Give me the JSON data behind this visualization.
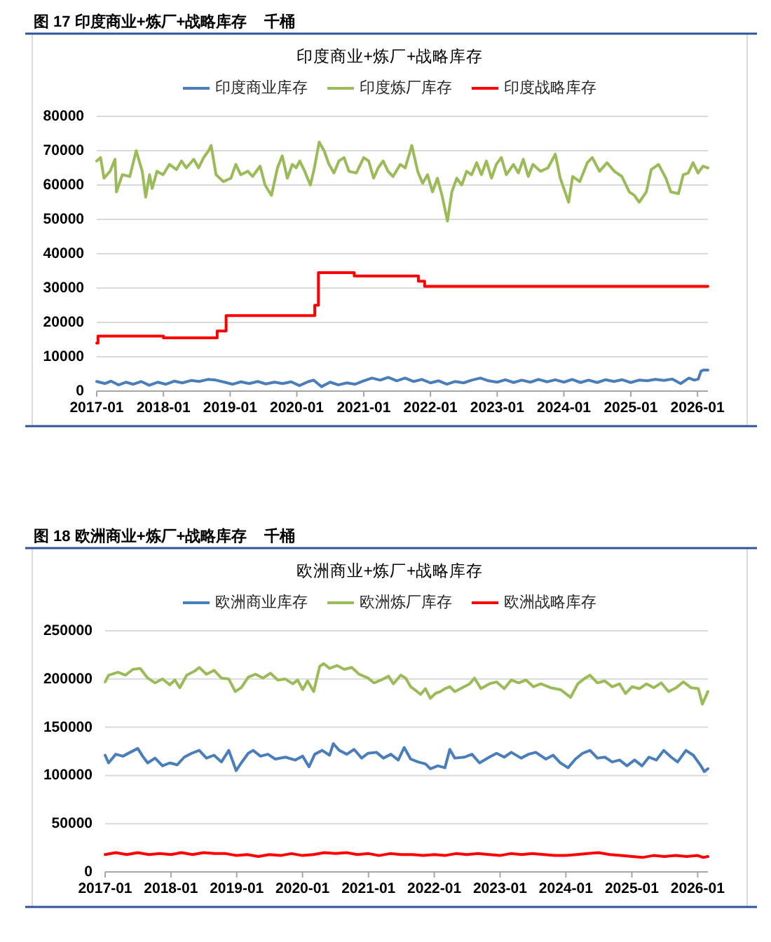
{
  "chart_data": [
    {
      "type": "line",
      "title": "图 17 印度商业+炼厂+战略库存    千桶",
      "subtitle": "印度商业+炼厂+战略库存",
      "legend": "top",
      "grid": "y",
      "xlim": [
        "2017-01-01",
        "2026-02-27"
      ],
      "xticks": [
        "2017-01",
        "2018-01",
        "2019-01",
        "2020-01",
        "2021-01",
        "2022-01",
        "2023-01",
        "2024-01",
        "2025-01",
        "2026-01"
      ],
      "ylim": [
        0,
        80000
      ],
      "yticks": [
        0,
        10000,
        20000,
        30000,
        40000,
        50000,
        60000,
        70000,
        80000
      ],
      "series": [
        {
          "name": "印度商业库存",
          "color": "#4a7ebb",
          "x": [
            "2017-01-01",
            "2017-02-15",
            "2017-03-20",
            "2017-05-01",
            "2017-06-10",
            "2017-07-20",
            "2017-09-01",
            "2017-10-15",
            "2017-12-01",
            "2018-01-15",
            "2018-03-01",
            "2018-04-15",
            "2018-06-01",
            "2018-07-15",
            "2018-09-01",
            "2018-10-15",
            "2018-12-01",
            "2019-01-15",
            "2019-03-01",
            "2019-04-15",
            "2019-06-01",
            "2019-07-15",
            "2019-09-01",
            "2019-10-15",
            "2019-12-01",
            "2020-01-15",
            "2020-03-01",
            "2020-04-01",
            "2020-05-15",
            "2020-07-01",
            "2020-08-15",
            "2020-10-01",
            "2020-11-15",
            "2021-01-01",
            "2021-02-15",
            "2021-04-01",
            "2021-05-15",
            "2021-07-01",
            "2021-08-15",
            "2021-10-01",
            "2021-11-15",
            "2022-01-01",
            "2022-02-15",
            "2022-04-01",
            "2022-05-15",
            "2022-07-01",
            "2022-08-15",
            "2022-10-01",
            "2022-11-15",
            "2023-01-01",
            "2023-02-15",
            "2023-04-01",
            "2023-05-15",
            "2023-07-01",
            "2023-08-15",
            "2023-10-01",
            "2023-11-15",
            "2024-01-01",
            "2024-02-15",
            "2024-04-01",
            "2024-05-15",
            "2024-07-01",
            "2024-08-15",
            "2024-10-01",
            "2024-11-15",
            "2025-01-01",
            "2025-02-15",
            "2025-04-01",
            "2025-05-15",
            "2025-07-01",
            "2025-08-15",
            "2025-10-01",
            "2025-11-15",
            "2025-12-15",
            "2026-01-05",
            "2026-01-20",
            "2026-02-01",
            "2026-02-27"
          ],
          "values": [
            2800,
            2200,
            2900,
            1800,
            2600,
            2000,
            2800,
            1700,
            2600,
            2000,
            2900,
            2400,
            3100,
            2800,
            3400,
            3200,
            2600,
            2000,
            2700,
            2200,
            2800,
            2100,
            2600,
            2200,
            2700,
            1600,
            2700,
            3200,
            1300,
            2600,
            1800,
            2400,
            2000,
            3000,
            3800,
            3200,
            4000,
            3000,
            3800,
            2800,
            3400,
            2400,
            3000,
            2000,
            2800,
            2400,
            3200,
            3800,
            3000,
            2600,
            3300,
            2500,
            3200,
            2600,
            3400,
            2700,
            3300,
            2600,
            3400,
            2500,
            3200,
            2500,
            3300,
            2800,
            3300,
            2500,
            3200,
            3000,
            3400,
            3100,
            3500,
            2200,
            3800,
            3200,
            3500,
            5800,
            6100,
            6100
          ]
        },
        {
          "name": "印度炼厂库存",
          "color": "#9bbb59",
          "x": [
            "2017-01-01",
            "2017-01-22",
            "2017-02-10",
            "2017-03-15",
            "2017-04-11",
            "2017-04-19",
            "2017-05-21",
            "2017-07-01",
            "2017-08-05",
            "2017-09-07",
            "2017-09-26",
            "2017-10-17",
            "2017-10-31",
            "2017-11-27",
            "2017-12-30",
            "2018-02-03",
            "2018-03-13",
            "2018-04-10",
            "2018-05-06",
            "2018-06-16",
            "2018-07-12",
            "2018-08-09",
            "2018-09-05",
            "2018-09-19",
            "2018-10-16",
            "2018-11-25",
            "2019-01-05",
            "2019-02-01",
            "2019-02-28",
            "2019-04-08",
            "2019-05-04",
            "2019-06-14",
            "2019-07-11",
            "2019-08-15",
            "2019-09-17",
            "2019-10-13",
            "2019-11-10",
            "2019-12-07",
            "2019-12-28",
            "2020-01-17",
            "2020-02-13",
            "2020-03-15",
            "2020-04-06",
            "2020-05-02",
            "2020-05-29",
            "2020-06-25",
            "2020-07-22",
            "2020-08-18",
            "2020-09-15",
            "2020-10-12",
            "2020-11-21",
            "2021-01-01",
            "2021-01-28",
            "2021-02-24",
            "2021-03-21",
            "2021-04-17",
            "2021-05-14",
            "2021-06-10",
            "2021-07-20",
            "2021-08-16",
            "2021-09-21",
            "2021-10-23",
            "2021-11-19",
            "2021-12-16",
            "2022-01-12",
            "2022-02-08",
            "2022-03-05",
            "2022-04-04",
            "2022-04-28",
            "2022-05-25",
            "2022-06-21",
            "2022-07-18",
            "2022-08-14",
            "2022-09-11",
            "2022-10-07",
            "2022-11-03",
            "2022-12-01",
            "2022-12-27",
            "2023-01-24",
            "2023-02-20",
            "2023-03-31",
            "2023-04-27",
            "2023-05-24",
            "2023-06-20",
            "2023-07-16",
            "2023-08-26",
            "2023-10-06",
            "2023-11-15",
            "2023-12-12",
            "2024-01-27",
            "2024-02-18",
            "2024-03-28",
            "2024-05-08",
            "2024-06-04",
            "2024-07-14",
            "2024-08-24",
            "2024-10-03",
            "2024-11-13",
            "2024-12-24",
            "2025-01-20",
            "2025-02-16",
            "2025-03-27",
            "2025-04-23",
            "2025-06-02",
            "2025-07-12",
            "2025-08-08",
            "2025-09-19",
            "2025-10-15",
            "2025-11-11",
            "2025-12-08",
            "2026-01-04",
            "2026-01-31",
            "2026-02-27"
          ],
          "values": [
            67000,
            68000,
            62000,
            64000,
            67500,
            58000,
            63000,
            62500,
            70000,
            64000,
            56500,
            63000,
            59000,
            64000,
            63000,
            66000,
            64500,
            67000,
            65000,
            67500,
            65000,
            68000,
            70000,
            71500,
            63000,
            61000,
            62000,
            66000,
            63000,
            64000,
            62500,
            65500,
            60000,
            57000,
            65000,
            68500,
            62000,
            66000,
            65000,
            67000,
            64000,
            60000,
            65000,
            72500,
            70000,
            66000,
            63500,
            67000,
            68000,
            64000,
            63500,
            68000,
            67000,
            62000,
            65000,
            67000,
            64000,
            62500,
            66000,
            65000,
            71500,
            64000,
            60500,
            63000,
            58000,
            62000,
            57000,
            49500,
            58000,
            62000,
            60000,
            64000,
            63000,
            66500,
            63000,
            67000,
            62000,
            66000,
            68000,
            63000,
            66000,
            63500,
            67500,
            62500,
            66000,
            64000,
            65000,
            69000,
            62000,
            55000,
            62500,
            61000,
            66500,
            68000,
            64000,
            66500,
            64000,
            62500,
            58000,
            57000,
            55000,
            58000,
            64500,
            66000,
            62000,
            58000,
            57500,
            63000,
            63500,
            66500,
            63500,
            65500,
            65000
          ]
        },
        {
          "name": "印度战略库存",
          "color": "#ff0000",
          "type": "step",
          "x": [
            "2017-01-01",
            "2017-01-08",
            "2018-01-01",
            "2018-10-22",
            "2018-12-10",
            "2020-04-08",
            "2020-04-28",
            "2020-11-10",
            "2021-10-27",
            "2021-11-30",
            "2026-02-27"
          ],
          "values": [
            14000,
            16000,
            15500,
            17500,
            22000,
            25000,
            34500,
            33500,
            32000,
            30500,
            30500
          ]
        }
      ]
    },
    {
      "type": "line",
      "title": "图 18 欧洲商业+炼厂+战略库存    千桶",
      "subtitle": "欧洲商业+炼厂+战略库存",
      "legend": "top",
      "grid": "y",
      "xlim": [
        "2017-01-01",
        "2026-02-27"
      ],
      "xticks": [
        "2017-01",
        "2018-01",
        "2019-01",
        "2020-01",
        "2021-01",
        "2022-01",
        "2023-01",
        "2024-01",
        "2025-01",
        "2026-01"
      ],
      "ylim": [
        0,
        250000
      ],
      "yticks": [
        0,
        50000,
        100000,
        150000,
        200000,
        250000
      ],
      "series": [
        {
          "name": "欧洲商业库存",
          "color": "#4a7ebb",
          "x": [
            "2017-01-01",
            "2017-01-20",
            "2017-03-01",
            "2017-04-10",
            "2017-05-20",
            "2017-07-01",
            "2017-07-28",
            "2017-08-25",
            "2017-10-05",
            "2017-11-15",
            "2017-12-26",
            "2018-02-05",
            "2018-03-16",
            "2018-04-26",
            "2018-06-07",
            "2018-07-17",
            "2018-08-28",
            "2018-10-08",
            "2018-11-18",
            "2018-12-29",
            "2019-01-26",
            "2019-03-06",
            "2019-04-02",
            "2019-05-13",
            "2019-06-23",
            "2019-08-03",
            "2019-09-28",
            "2019-11-21",
            "2020-01-02",
            "2020-02-06",
            "2020-03-09",
            "2020-04-19",
            "2020-05-30",
            "2020-06-20",
            "2020-07-23",
            "2020-09-03",
            "2020-10-13",
            "2020-11-24",
            "2020-12-29",
            "2021-02-14",
            "2021-03-25",
            "2021-05-05",
            "2021-06-15",
            "2021-07-18",
            "2021-08-23",
            "2021-10-03",
            "2021-11-13",
            "2021-12-10",
            "2022-01-21",
            "2022-03-01",
            "2022-03-28",
            "2022-04-25",
            "2022-06-18",
            "2022-07-29",
            "2022-09-09",
            "2022-11-02",
            "2022-12-13",
            "2023-01-24",
            "2023-03-04",
            "2023-04-28",
            "2023-06-08",
            "2023-07-18",
            "2023-09-12",
            "2023-10-22",
            "2023-12-02",
            "2024-01-13",
            "2024-02-23",
            "2024-04-03",
            "2024-05-14",
            "2024-06-24",
            "2024-08-04",
            "2024-09-14",
            "2024-10-25",
            "2024-12-05",
            "2025-01-16",
            "2025-02-26",
            "2025-04-06",
            "2025-05-17",
            "2025-06-27",
            "2025-08-07",
            "2025-09-12",
            "2025-10-28",
            "2025-12-08",
            "2026-01-19",
            "2026-02-07",
            "2026-02-27"
          ],
          "values": [
            121000,
            113000,
            122000,
            120000,
            124000,
            128000,
            120000,
            113000,
            118000,
            110000,
            113000,
            111000,
            119000,
            123000,
            126000,
            118000,
            121000,
            114000,
            126000,
            105000,
            113000,
            123000,
            126000,
            120000,
            122000,
            117000,
            119000,
            116000,
            120000,
            109000,
            122000,
            126000,
            121000,
            133000,
            126000,
            122000,
            127000,
            118000,
            123000,
            124000,
            118000,
            122000,
            116000,
            129000,
            117000,
            114000,
            112000,
            107000,
            110000,
            108000,
            127000,
            118000,
            119000,
            122000,
            113000,
            119000,
            123000,
            119000,
            124000,
            118000,
            122000,
            124000,
            117000,
            121000,
            113000,
            108000,
            117000,
            123000,
            126000,
            118000,
            119000,
            114000,
            116000,
            110000,
            116000,
            110000,
            119000,
            116000,
            126000,
            119000,
            114000,
            126000,
            121000,
            110000,
            104000,
            107000
          ]
        },
        {
          "name": "欧洲炼厂库存",
          "color": "#9bbb59",
          "x": [
            "2017-01-01",
            "2017-01-20",
            "2017-03-14",
            "2017-04-24",
            "2017-06-04",
            "2017-07-15",
            "2017-08-25",
            "2017-10-05",
            "2017-11-15",
            "2017-12-26",
            "2018-01-23",
            "2018-02-19",
            "2018-03-30",
            "2018-05-10",
            "2018-06-07",
            "2018-07-17",
            "2018-08-28",
            "2018-10-08",
            "2018-11-18",
            "2018-12-24",
            "2019-01-26",
            "2019-03-06",
            "2019-04-16",
            "2019-05-27",
            "2019-07-07",
            "2019-08-17",
            "2019-09-28",
            "2019-11-08",
            "2019-12-05",
            "2020-01-02",
            "2020-01-29",
            "2020-03-03",
            "2020-04-05",
            "2020-04-27",
            "2020-05-30",
            "2020-07-10",
            "2020-08-20",
            "2020-09-30",
            "2020-11-10",
            "2020-12-29",
            "2021-02-01",
            "2021-03-12",
            "2021-04-22",
            "2021-05-19",
            "2021-06-29",
            "2021-07-26",
            "2021-08-23",
            "2021-09-28",
            "2021-10-17",
            "2021-11-13",
            "2021-12-10",
            "2022-01-07",
            "2022-02-04",
            "2022-03-01",
            "2022-03-28",
            "2022-04-25",
            "2022-06-05",
            "2022-07-16",
            "2022-08-12",
            "2022-09-17",
            "2022-11-02",
            "2022-12-13",
            "2023-01-24",
            "2023-03-04",
            "2023-04-14",
            "2023-05-25",
            "2023-07-05",
            "2023-08-15",
            "2023-10-09",
            "2023-12-02",
            "2024-01-27",
            "2024-03-07",
            "2024-04-17",
            "2024-05-14",
            "2024-06-24",
            "2024-08-04",
            "2024-09-14",
            "2024-10-25",
            "2024-11-27",
            "2025-01-02",
            "2025-02-12",
            "2025-03-24",
            "2025-05-03",
            "2025-06-13",
            "2025-07-24",
            "2025-09-04",
            "2025-10-14",
            "2025-11-25",
            "2026-01-05",
            "2026-01-27",
            "2026-02-27"
          ],
          "values": [
            197000,
            204000,
            207000,
            204000,
            210000,
            211000,
            201000,
            196000,
            200000,
            194000,
            199000,
            191000,
            204000,
            208000,
            212000,
            205000,
            209000,
            201000,
            200000,
            187000,
            191000,
            202000,
            205000,
            201000,
            206000,
            199000,
            200000,
            195000,
            199000,
            189000,
            198000,
            187000,
            213000,
            216000,
            211000,
            214000,
            210000,
            212000,
            205000,
            201000,
            196000,
            199000,
            203000,
            195000,
            204000,
            201000,
            192000,
            187000,
            184000,
            190000,
            180000,
            185000,
            187000,
            190000,
            192000,
            187000,
            191000,
            195000,
            201000,
            190000,
            195000,
            197000,
            190000,
            199000,
            196000,
            199000,
            192000,
            195000,
            191000,
            189000,
            181000,
            195000,
            201000,
            204000,
            196000,
            198000,
            192000,
            195000,
            185000,
            192000,
            190000,
            195000,
            191000,
            196000,
            187000,
            191000,
            197000,
            191000,
            190000,
            174000,
            187000
          ]
        },
        {
          "name": "欧洲战略库存",
          "color": "#ff0000",
          "x": [
            "2017-01-01",
            "2017-03-01",
            "2017-05-01",
            "2017-07-01",
            "2017-09-01",
            "2017-11-01",
            "2018-01-01",
            "2018-03-01",
            "2018-05-01",
            "2018-07-01",
            "2018-09-01",
            "2018-11-01",
            "2019-01-01",
            "2019-03-01",
            "2019-05-01",
            "2019-07-01",
            "2019-09-01",
            "2019-11-01",
            "2020-01-01",
            "2020-03-01",
            "2020-05-01",
            "2020-07-01",
            "2020-09-01",
            "2020-11-01",
            "2021-01-01",
            "2021-03-01",
            "2021-05-01",
            "2021-07-01",
            "2021-09-01",
            "2021-11-01",
            "2022-01-01",
            "2022-03-01",
            "2022-05-01",
            "2022-07-01",
            "2022-09-01",
            "2022-11-01",
            "2023-01-01",
            "2023-03-01",
            "2023-05-01",
            "2023-07-01",
            "2023-09-01",
            "2023-11-01",
            "2024-01-01",
            "2024-03-01",
            "2024-05-01",
            "2024-07-01",
            "2024-09-01",
            "2024-11-01",
            "2025-01-01",
            "2025-03-01",
            "2025-05-01",
            "2025-07-01",
            "2025-09-01",
            "2025-11-01",
            "2026-01-01",
            "2026-02-01",
            "2026-02-27"
          ],
          "values": [
            18000,
            20000,
            18000,
            20000,
            18000,
            19000,
            18000,
            20000,
            18000,
            20000,
            19000,
            19000,
            17000,
            18000,
            16000,
            18000,
            17000,
            19000,
            17000,
            18000,
            20000,
            19000,
            20000,
            18000,
            19000,
            17000,
            19000,
            18000,
            18000,
            17000,
            18000,
            17000,
            19000,
            18000,
            19000,
            18000,
            17000,
            19000,
            18000,
            19000,
            18000,
            17000,
            17000,
            18000,
            19000,
            20000,
            18000,
            17000,
            16000,
            15000,
            17000,
            16000,
            17000,
            16000,
            17000,
            15000,
            16000
          ]
        }
      ]
    }
  ]
}
